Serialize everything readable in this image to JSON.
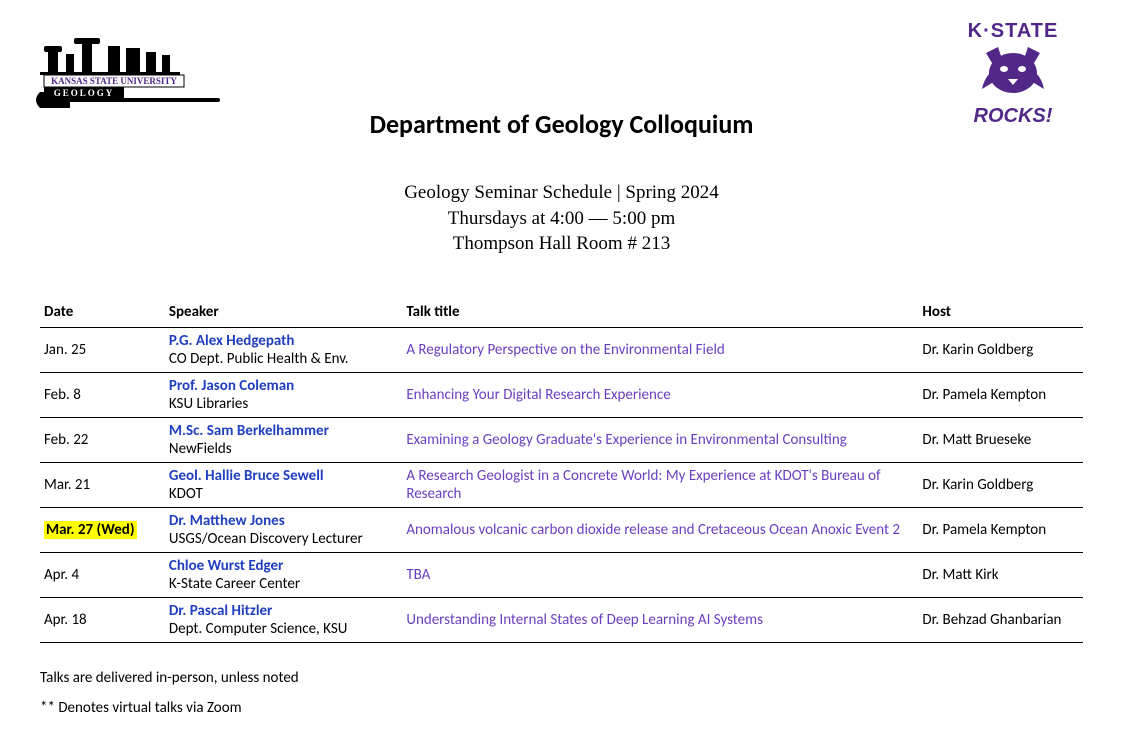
{
  "colors": {
    "purple": "#512888",
    "link_blue": "#1f3fbf",
    "title_purple": "#6a3fbf",
    "highlight": "#ffff00",
    "text": "#000000",
    "background": "#ffffff"
  },
  "logo_left": {
    "line1": "KANSAS STATE UNIVERSITY",
    "line2": "GEOLOGY"
  },
  "logo_right": {
    "top": "K·STATE",
    "bottom": "ROCKS!"
  },
  "title": "Department of Geology Colloquium",
  "subheader": {
    "line1": "Geology Seminar Schedule | Spring 2024",
    "line2": "Thursdays at 4:00 — 5:00 pm",
    "line3": "Thompson Hall Room # 213"
  },
  "columns": [
    "Date",
    "Speaker",
    "Talk title",
    "Host"
  ],
  "rows": [
    {
      "date": "Jan. 25",
      "date_highlight": false,
      "speaker_name": "P.G. Alex Hedgepath",
      "speaker_aff": "CO Dept. Public Health & Env.",
      "talk": "A Regulatory Perspective on the Environmental Field",
      "host": "Dr. Karin Goldberg"
    },
    {
      "date": "Feb. 8",
      "date_highlight": false,
      "speaker_name": "Prof. Jason Coleman",
      "speaker_aff": "KSU Libraries",
      "talk": "Enhancing Your Digital Research Experience",
      "host": "Dr. Pamela Kempton"
    },
    {
      "date": "Feb. 22",
      "date_highlight": false,
      "speaker_name": "M.Sc. Sam Berkelhammer",
      "speaker_aff": "NewFields",
      "talk": "Examining a Geology Graduate's Experience in Environmental Consulting",
      "host": "Dr. Matt Brueseke"
    },
    {
      "date": "Mar. 21",
      "date_highlight": false,
      "speaker_name": "Geol. Hallie Bruce Sewell",
      "speaker_aff": "KDOT",
      "talk": "A Research Geologist in a Concrete World: My Experience at KDOT's Bureau of Research",
      "host": "Dr. Karin Goldberg"
    },
    {
      "date": "Mar. 27 (Wed)",
      "date_highlight": true,
      "speaker_name": "Dr. Matthew Jones",
      "speaker_aff": "USGS/Ocean Discovery Lecturer",
      "talk": "Anomalous volcanic carbon dioxide release and Cretaceous Ocean Anoxic Event 2",
      "host": "Dr. Pamela Kempton"
    },
    {
      "date": "Apr. 4",
      "date_highlight": false,
      "speaker_name": "Chloe Wurst Edger",
      "speaker_aff": "K-State Career Center",
      "talk": "TBA",
      "host": "Dr. Matt Kirk"
    },
    {
      "date": "Apr. 18",
      "date_highlight": false,
      "speaker_name": "Dr. Pascal Hitzler",
      "speaker_aff": "Dept. Computer Science, KSU",
      "talk": "Understanding Internal States of Deep Learning AI Systems",
      "host": "Dr. Behzad Ghanbarian"
    }
  ],
  "footnotes": {
    "line1": "Talks are delivered in-person, unless noted",
    "line2": "** Denotes virtual talks via Zoom"
  }
}
